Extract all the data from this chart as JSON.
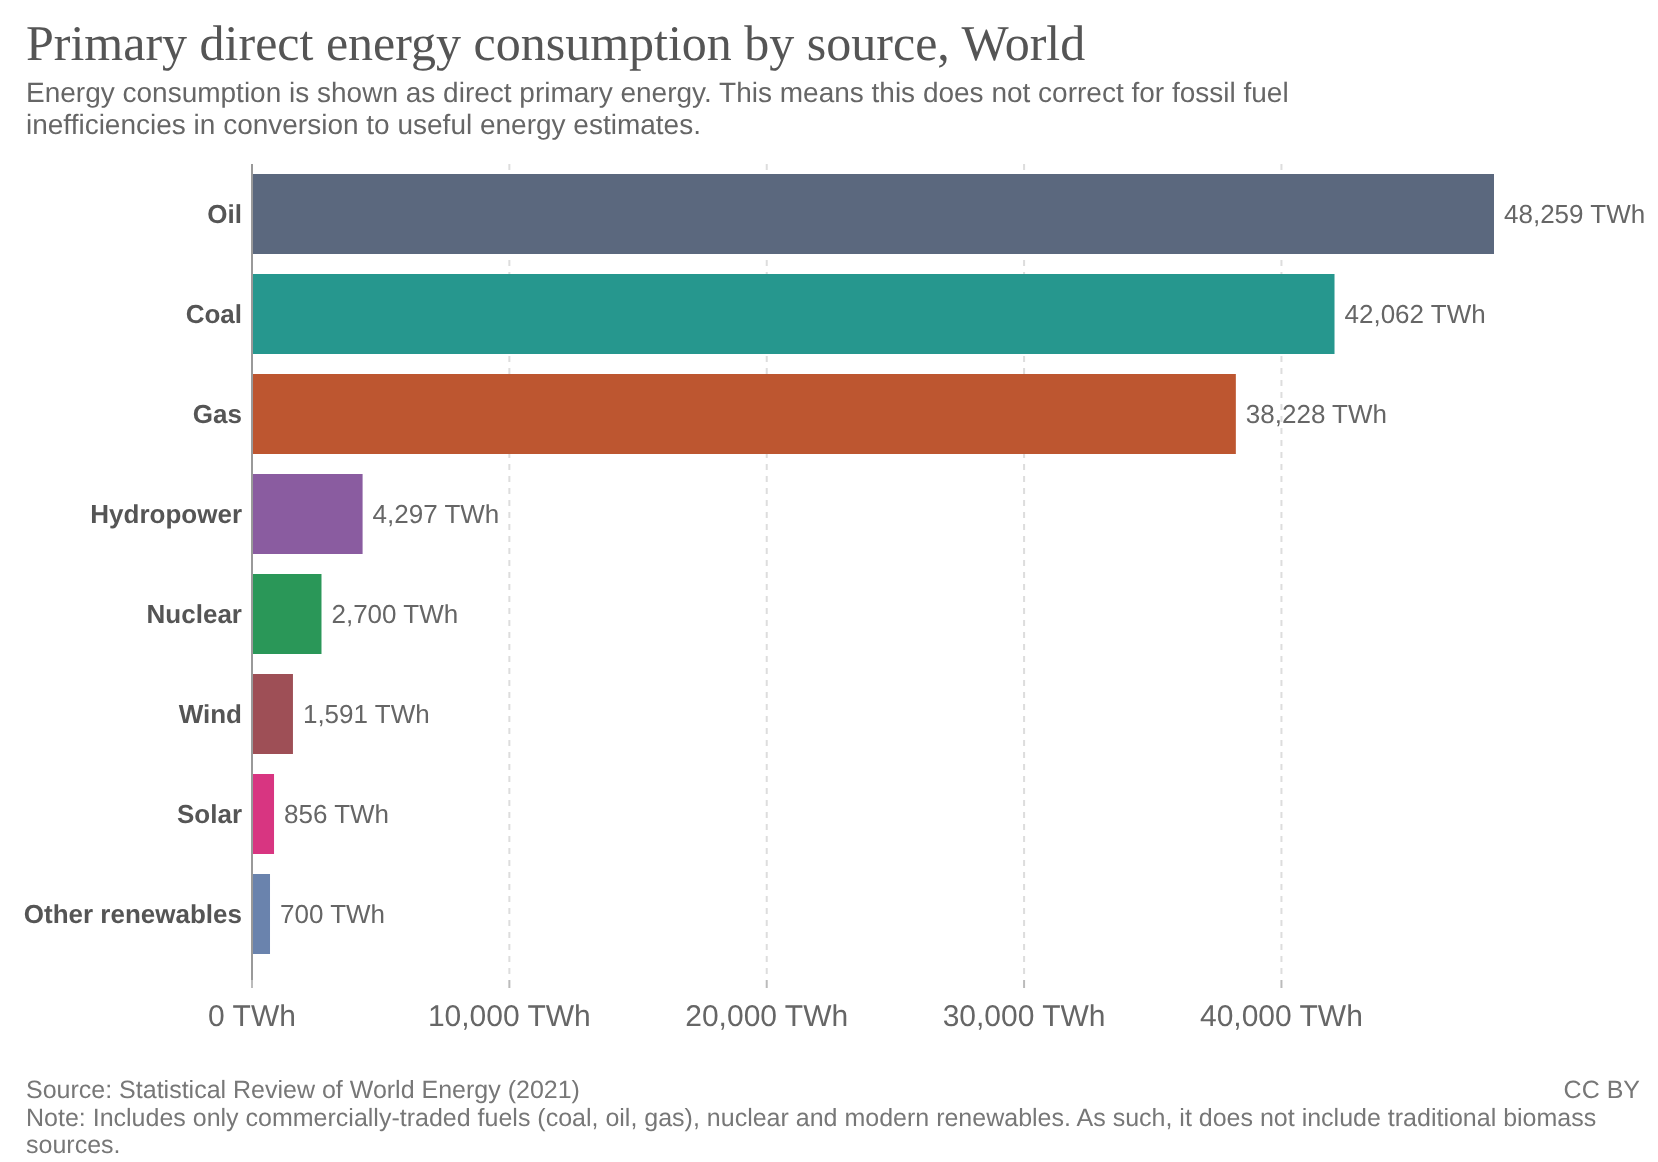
{
  "chart_data": {
    "type": "bar",
    "orientation": "horizontal",
    "title": "Primary direct energy consumption by source, World",
    "subtitle": "Energy consumption is shown as direct primary energy. This means this does not correct for fossil fuel inefficiencies in conversion to useful energy estimates.",
    "categories": [
      "Oil",
      "Coal",
      "Gas",
      "Hydropower",
      "Nuclear",
      "Wind",
      "Solar",
      "Other renewables"
    ],
    "values": [
      48259,
      42062,
      38228,
      4297,
      2700,
      1591,
      856,
      700
    ],
    "value_labels": [
      "48,259 TWh",
      "42,062 TWh",
      "38,228 TWh",
      "4,297 TWh",
      "2,700 TWh",
      "1,591 TWh",
      "856 TWh",
      "700 TWh"
    ],
    "colors": [
      "#5b687e",
      "#26978e",
      "#bd5630",
      "#8a5ca0",
      "#2a9758",
      "#9e4f56",
      "#d83581",
      "#6a83ad"
    ],
    "xlim": [
      0,
      48259
    ],
    "xticks": [
      {
        "value": 0,
        "label": "0 TWh"
      },
      {
        "value": 10000,
        "label": "10,000 TWh"
      },
      {
        "value": 20000,
        "label": "20,000 TWh"
      },
      {
        "value": 30000,
        "label": "30,000 TWh"
      },
      {
        "value": 40000,
        "label": "40,000 TWh"
      }
    ],
    "grid": "x",
    "annotations": [
      "Source: Statistical Review of World Energy (2021)",
      "CC BY",
      "Note: Includes only commercially-traded fuels (coal, oil, gas), nuclear and modern renewables. As such, it does not include traditional biomass sources."
    ]
  }
}
